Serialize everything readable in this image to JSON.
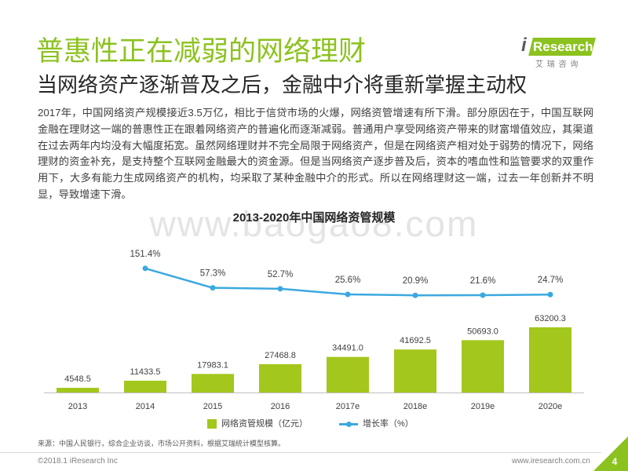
{
  "slide": {
    "title": "普惠性正在减弱的网络理财",
    "subtitle": "当网络资产逐渐普及之后，金融中介将重新掌握主动权",
    "paragraph_lines": [
      "2017年，中国网络资产规模接近3.5万亿，相比于信贷市场的火爆，网络资管增速有所下滑。部分原因在于，中国互联网",
      "金融在理财这一端的普惠性正在跟着网络资产的普遍化而逐渐减弱。普通用户享受网络资产带来的财富增值效应，其渠道",
      "在过去两年内均没有大幅度拓宽。虽然网络理财并不完全局限于网络资产，但是在网络资产相对处于弱势的情况下，网络",
      "理财的资金补充，是支持整个互联网金融最大的资金源。但是当网络资产逐步普及后，资本的嗜血性和监管要求的双重作",
      "用下，大多有能力生成网络资产的机构，均采取了某种金融中介的形式。所以在网络理财这一端，过去一年创新并不明",
      "显，导致增速下滑。"
    ],
    "source": "来源：中国人民银行，综合企业访谈，市场公开资料，根据艾瑞统计模型核算。",
    "watermark": "www.baogao8.com"
  },
  "logo": {
    "brand_i": "i",
    "brand_rest": "Research",
    "cn": "艾 瑞 咨 询"
  },
  "footer": {
    "copyright": "©2018.1 iResearch Inc",
    "website": "www.iresearch.com.cn",
    "page": "4"
  },
  "colors": {
    "accent_green": "#8cc21f",
    "bar_green": "#a3c71c",
    "line_blue": "#3ba9df",
    "footer_gray": "#808080"
  },
  "chart_data": {
    "type": "bar",
    "title": "2013-2020年中国网络资管规模",
    "categories": [
      "2013",
      "2014",
      "2015",
      "2016",
      "2017e",
      "2018e",
      "2019e",
      "2020e"
    ],
    "series": [
      {
        "name": "网络资管规模（亿元）",
        "type": "bar",
        "axis": "primary",
        "color": "#a3c71c",
        "values": [
          4548.5,
          11433.5,
          17983.1,
          27468.8,
          34491.0,
          41692.5,
          50693.0,
          63200.3
        ]
      },
      {
        "name": "增长率（%）",
        "type": "line",
        "axis": "secondary",
        "color": "#3ba9df",
        "values": [
          null,
          151.4,
          57.3,
          52.7,
          25.6,
          20.9,
          21.6,
          24.7
        ]
      }
    ],
    "ylim": [
      0,
      140000
    ],
    "y2lim": [
      -450,
      250
    ],
    "grid": false,
    "legend": "bottom"
  }
}
